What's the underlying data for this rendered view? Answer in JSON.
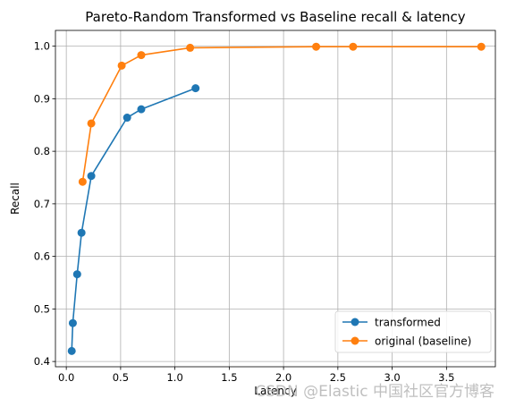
{
  "chart_data": {
    "type": "line",
    "title": "Pareto-Random Transformed vs Baseline recall & latency",
    "xlabel": "Latency",
    "ylabel": "Recall",
    "xlim": [
      -0.1,
      3.95
    ],
    "ylim": [
      0.39,
      1.03
    ],
    "xticks": [
      0.0,
      0.5,
      1.0,
      1.5,
      2.0,
      2.5,
      3.0,
      3.5
    ],
    "xtick_labels": [
      "0.0",
      "0.5",
      "1.0",
      "1.5",
      "2.0",
      "2.5",
      "3.0",
      "3.5"
    ],
    "yticks": [
      0.4,
      0.5,
      0.6,
      0.7,
      0.8,
      0.9,
      1.0
    ],
    "ytick_labels": [
      "0.4",
      "0.5",
      "0.6",
      "0.7",
      "0.8",
      "0.9",
      "1.0"
    ],
    "grid": true,
    "legend_position": "lower-right",
    "series": [
      {
        "name": "transformed",
        "color": "#1f77b4",
        "marker": "circle",
        "x": [
          0.05,
          0.06,
          0.1,
          0.14,
          0.23,
          0.56,
          0.69,
          1.19
        ],
        "y": [
          0.42,
          0.473,
          0.566,
          0.645,
          0.753,
          0.864,
          0.88,
          0.92
        ]
      },
      {
        "name": "original (baseline)",
        "color": "#ff7f0e",
        "marker": "circle",
        "x": [
          0.15,
          0.23,
          0.51,
          0.69,
          1.14,
          2.3,
          2.64,
          3.82
        ],
        "y": [
          0.742,
          0.853,
          0.963,
          0.983,
          0.997,
          0.999,
          0.999,
          0.999
        ]
      }
    ]
  },
  "watermark": {
    "text": "CSDN @Elastic 中国社区官方博客"
  }
}
